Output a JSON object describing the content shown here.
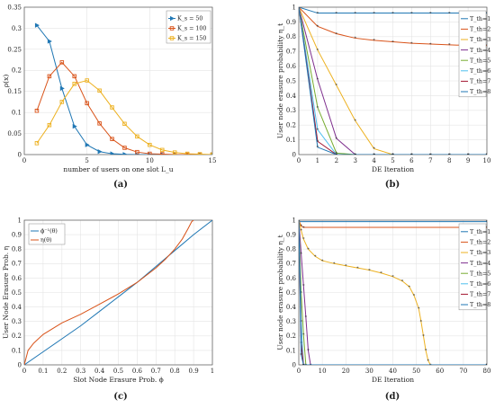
{
  "chart_data": [
    {
      "panel": "(a)",
      "type": "line",
      "xlabel": "number of users on one slot L_u",
      "ylabel": "ρ(x)",
      "xlim": [
        0,
        15
      ],
      "ylim": [
        0,
        0.35
      ],
      "xticks": [
        "0",
        "5",
        "10",
        "15"
      ],
      "yticks": [
        "0",
        "0.05",
        "0.1",
        "0.15",
        "0.2",
        "0.25",
        "0.3",
        "0.35"
      ],
      "grid": true,
      "legend": "top-right",
      "series": [
        {
          "name": "K_s = 50",
          "color": "#1f77b4",
          "marker": "triangle",
          "x": [
            1,
            2,
            3,
            4,
            5,
            6,
            7,
            8,
            9,
            10,
            11,
            12,
            13,
            14,
            15
          ],
          "y": [
            0.307,
            0.269,
            0.157,
            0.067,
            0.023,
            0.007,
            0.002,
            0.0005,
            0,
            0,
            0,
            0,
            0,
            0,
            0
          ]
        },
        {
          "name": "K_s = 100",
          "color": "#d95319",
          "marker": "square",
          "x": [
            1,
            2,
            3,
            4,
            5,
            6,
            7,
            8,
            9,
            10,
            11,
            12,
            13,
            14,
            15
          ],
          "y": [
            0.104,
            0.186,
            0.219,
            0.186,
            0.122,
            0.074,
            0.037,
            0.016,
            0.006,
            0.002,
            0.001,
            0,
            0,
            0,
            0
          ]
        },
        {
          "name": "K_s = 150",
          "color": "#edb120",
          "marker": "square",
          "x": [
            1,
            2,
            3,
            4,
            5,
            6,
            7,
            8,
            9,
            10,
            11,
            12,
            13,
            14,
            15
          ],
          "y": [
            0.027,
            0.07,
            0.125,
            0.168,
            0.176,
            0.152,
            0.112,
            0.073,
            0.043,
            0.023,
            0.011,
            0.005,
            0.002,
            0.001,
            0
          ]
        }
      ]
    },
    {
      "panel": "(b)",
      "type": "line",
      "xlabel": "DE Iteration",
      "ylabel": "User node erasure probability η_t",
      "xlim": [
        0,
        10
      ],
      "ylim": [
        0,
        1
      ],
      "xticks": [
        "0",
        "1",
        "2",
        "3",
        "4",
        "5",
        "6",
        "7",
        "8",
        "9",
        "10"
      ],
      "yticks": [
        "0",
        "0.1",
        "0.2",
        "0.3",
        "0.4",
        "0.5",
        "0.6",
        "0.7",
        "0.8",
        "0.9",
        "1"
      ],
      "grid": true,
      "legend": "right",
      "series": [
        {
          "name": "T_th=1",
          "color": "#1f77b4",
          "x": [
            0,
            1,
            2,
            3,
            4,
            5,
            6,
            7,
            8,
            9,
            10
          ],
          "y": [
            1,
            0.96,
            0.96,
            0.96,
            0.96,
            0.96,
            0.96,
            0.96,
            0.96,
            0.96,
            0.96
          ]
        },
        {
          "name": "T_th=2",
          "color": "#d95319",
          "x": [
            0,
            1,
            2,
            3,
            4,
            5,
            6,
            7,
            8,
            9,
            10
          ],
          "y": [
            1,
            0.87,
            0.82,
            0.79,
            0.775,
            0.765,
            0.755,
            0.75,
            0.745,
            0.74,
            0.74
          ]
        },
        {
          "name": "T_th=3",
          "color": "#edb120",
          "x": [
            0,
            1,
            2,
            3,
            4,
            5,
            6,
            7,
            8,
            9,
            10
          ],
          "y": [
            1,
            0.71,
            0.47,
            0.23,
            0.04,
            0,
            0,
            0,
            0,
            0,
            0
          ]
        },
        {
          "name": "T_th=4",
          "color": "#7e2f8e",
          "x": [
            0,
            1,
            2,
            3,
            4,
            5,
            6,
            7,
            8,
            9,
            10
          ],
          "y": [
            1,
            0.51,
            0.11,
            0,
            0,
            0,
            0,
            0,
            0,
            0,
            0
          ]
        },
        {
          "name": "T_th=5",
          "color": "#77ac30",
          "x": [
            0,
            1,
            2,
            3,
            4,
            5,
            6,
            7,
            8,
            9,
            10
          ],
          "y": [
            1,
            0.32,
            0.01,
            0,
            0,
            0,
            0,
            0,
            0,
            0,
            0
          ]
        },
        {
          "name": "T_th=6",
          "color": "#4dbeee",
          "x": [
            0,
            1,
            2,
            3,
            4,
            5,
            6,
            7,
            8,
            9,
            10
          ],
          "y": [
            1,
            0.17,
            0,
            0,
            0,
            0,
            0,
            0,
            0,
            0,
            0
          ]
        },
        {
          "name": "T_th=7",
          "color": "#a2142f",
          "x": [
            0,
            1,
            2,
            3,
            4,
            5,
            6,
            7,
            8,
            9,
            10
          ],
          "y": [
            1,
            0.09,
            0,
            0,
            0,
            0,
            0,
            0,
            0,
            0,
            0
          ]
        },
        {
          "name": "T_th=8",
          "color": "#1f77b4",
          "x": [
            0,
            1,
            2,
            3,
            4,
            5,
            6,
            7,
            8,
            9,
            10
          ],
          "y": [
            1,
            0.05,
            0,
            0,
            0,
            0,
            0,
            0,
            0,
            0,
            0
          ]
        }
      ]
    },
    {
      "panel": "(c)",
      "type": "line",
      "xlabel": "Slot Node Erasure Prob. ϕ",
      "ylabel": "User Node Erasure Prob. η",
      "xlim": [
        0,
        1
      ],
      "ylim": [
        0,
        1
      ],
      "xticks": [
        "0",
        "0.1",
        "0.2",
        "0.3",
        "0.4",
        "0.5",
        "0.6",
        "0.7",
        "0.8",
        "0.9",
        "1"
      ],
      "yticks": [
        "0",
        "0.1",
        "0.2",
        "0.3",
        "0.4",
        "0.5",
        "0.6",
        "0.7",
        "0.8",
        "0.9",
        "1"
      ],
      "grid": true,
      "legend": "top-left",
      "series": [
        {
          "name": "ϕ⁻¹(θ)",
          "color": "#1f77b4",
          "x": [
            0,
            0.1,
            0.2,
            0.3,
            0.4,
            0.5,
            0.6,
            0.7,
            0.8,
            0.9,
            1
          ],
          "y": [
            0,
            0.09,
            0.18,
            0.27,
            0.37,
            0.47,
            0.57,
            0.68,
            0.79,
            0.9,
            1
          ]
        },
        {
          "name": "η(θ)",
          "color": "#d95319",
          "x": [
            0,
            0.02,
            0.05,
            0.1,
            0.2,
            0.3,
            0.4,
            0.5,
            0.6,
            0.7,
            0.75,
            0.8,
            0.84,
            0.87,
            0.89,
            0.9
          ],
          "y": [
            0,
            0.1,
            0.15,
            0.21,
            0.29,
            0.35,
            0.42,
            0.49,
            0.57,
            0.67,
            0.73,
            0.8,
            0.87,
            0.94,
            0.99,
            1.0
          ]
        }
      ]
    },
    {
      "panel": "(d)",
      "type": "line",
      "xlabel": "DE Iteration",
      "ylabel": "User node erasure probability η_t",
      "xlim": [
        0,
        80
      ],
      "ylim": [
        0,
        1
      ],
      "xticks": [
        "0",
        "10",
        "20",
        "30",
        "40",
        "50",
        "60",
        "70",
        "80"
      ],
      "yticks": [
        "0",
        "0.1",
        "0.2",
        "0.3",
        "0.4",
        "0.5",
        "0.6",
        "0.7",
        "0.8",
        "0.9",
        "1"
      ],
      "grid": true,
      "legend": "right",
      "series": [
        {
          "name": "T_th=1",
          "color": "#1f77b4",
          "x": [
            0,
            80
          ],
          "y": [
            0.99,
            0.99
          ]
        },
        {
          "name": "T_th=2",
          "color": "#d95319",
          "x": [
            0,
            1,
            2,
            80
          ],
          "y": [
            1,
            0.96,
            0.95,
            0.95
          ]
        },
        {
          "name": "T_th=3",
          "color": "#edb120",
          "x": [
            0,
            1,
            2,
            4,
            7,
            10,
            15,
            20,
            25,
            30,
            35,
            40,
            44,
            47,
            49,
            51,
            52,
            53,
            54,
            55,
            56,
            80
          ],
          "y": [
            1,
            0.93,
            0.87,
            0.8,
            0.75,
            0.72,
            0.7,
            0.685,
            0.67,
            0.655,
            0.635,
            0.61,
            0.58,
            0.54,
            0.48,
            0.39,
            0.3,
            0.2,
            0.1,
            0.03,
            0,
            0
          ]
        },
        {
          "name": "T_th=4",
          "color": "#7e2f8e",
          "x": [
            0,
            1,
            2,
            3,
            4,
            5,
            80
          ],
          "y": [
            1,
            0.77,
            0.55,
            0.33,
            0.1,
            0,
            0
          ]
        },
        {
          "name": "T_th=5",
          "color": "#77ac30",
          "x": [
            0,
            1,
            2,
            3,
            80
          ],
          "y": [
            1,
            0.5,
            0.21,
            0,
            0
          ]
        },
        {
          "name": "T_th=6",
          "color": "#4dbeee",
          "x": [
            0,
            1,
            2,
            80
          ],
          "y": [
            1,
            0.3,
            0,
            0
          ]
        },
        {
          "name": "T_th=7",
          "color": "#a2142f",
          "x": [
            0,
            1,
            2,
            80
          ],
          "y": [
            1,
            0.15,
            0,
            0
          ]
        },
        {
          "name": "T_th=8",
          "color": "#1f77b4",
          "x": [
            0,
            1,
            2,
            80
          ],
          "y": [
            1,
            0.07,
            0,
            0
          ]
        }
      ]
    }
  ]
}
